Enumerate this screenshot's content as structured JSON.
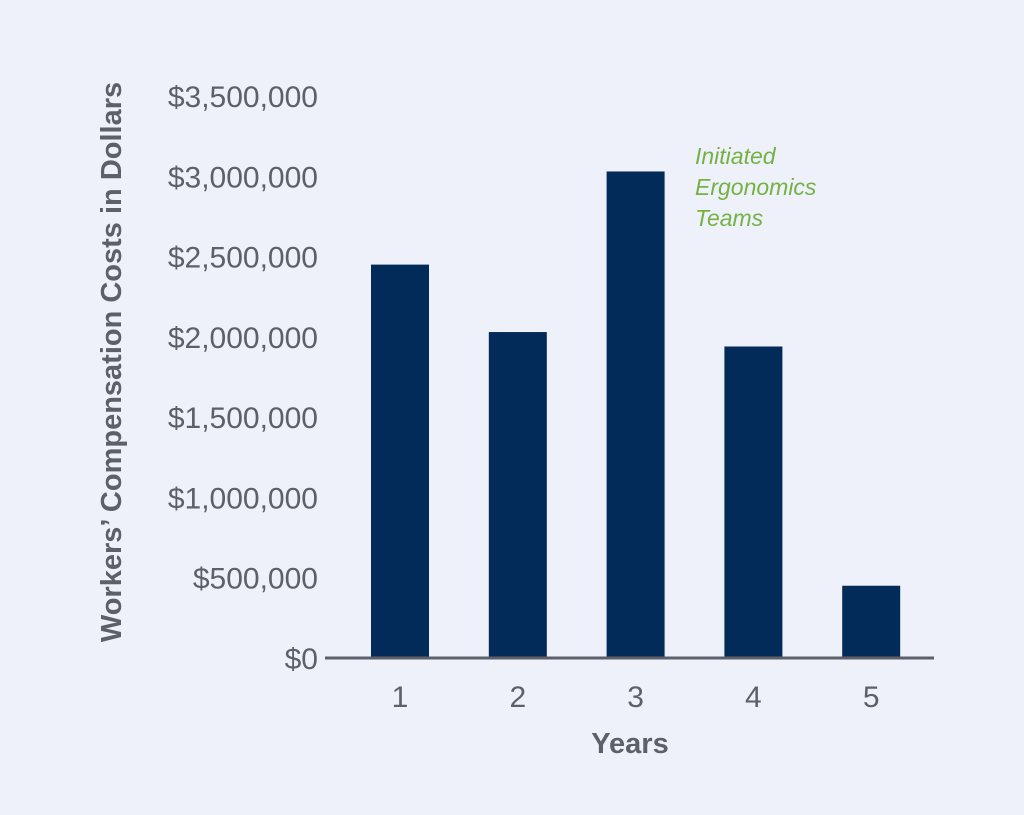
{
  "chart_data": {
    "type": "bar",
    "categories": [
      "1",
      "2",
      "3",
      "4",
      "5"
    ],
    "values": [
      2450000,
      2030000,
      3030000,
      1940000,
      450000
    ],
    "title": "",
    "xlabel": "Years",
    "ylabel": "Workers’ Compensation Costs in Dollars",
    "ylim": [
      0,
      3500000
    ],
    "yticks": [
      0,
      500000,
      1000000,
      1500000,
      2000000,
      2500000,
      3000000,
      3500000
    ],
    "ytick_labels": [
      "$0",
      "$500,000",
      "$1,000,000",
      "$1,500,000",
      "$2,000,000",
      "$2,500,000",
      "$3,000,000",
      "$3,500,000"
    ],
    "grid": false,
    "legend": "none",
    "annotation": {
      "category": "3",
      "lines": [
        "Initiated",
        "Ergonomics",
        "Teams"
      ]
    },
    "colors": {
      "background": "#eff1fa",
      "bar": "#032b5a",
      "axis": "#5d6068",
      "text": "#5d6068",
      "annotation": "#74b244"
    }
  }
}
